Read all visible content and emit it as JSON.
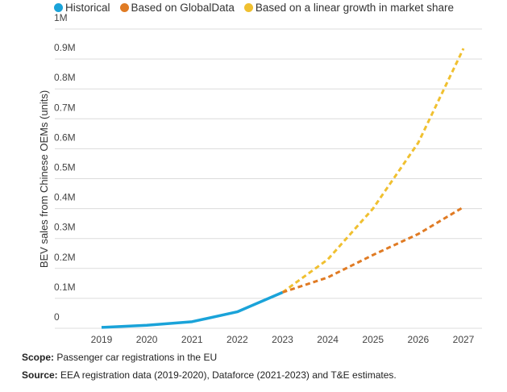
{
  "chart_data": {
    "type": "line",
    "title": "",
    "xlabel": "",
    "ylabel": "BEV sales from Chinese OEMs (units)",
    "ylim": [
      0,
      1000000
    ],
    "yticks": [
      {
        "value": 0,
        "label": "0"
      },
      {
        "value": 100000,
        "label": "0.1M"
      },
      {
        "value": 200000,
        "label": "0.2M"
      },
      {
        "value": 300000,
        "label": "0.3M"
      },
      {
        "value": 400000,
        "label": "0.4M"
      },
      {
        "value": 500000,
        "label": "0.5M"
      },
      {
        "value": 600000,
        "label": "0.6M"
      },
      {
        "value": 700000,
        "label": "0.7M"
      },
      {
        "value": 800000,
        "label": "0.8M"
      },
      {
        "value": 900000,
        "label": "0.9M"
      },
      {
        "value": 1000000,
        "label": "1M"
      }
    ],
    "x": [
      "2019",
      "2020",
      "2021",
      "2022",
      "2023",
      "2024",
      "2025",
      "2026",
      "2027"
    ],
    "grid": true,
    "legend_position": "top-left",
    "series": [
      {
        "name": "Historical",
        "color": "#1aa3d9",
        "dashed": false,
        "x": [
          "2019",
          "2020",
          "2021",
          "2022",
          "2023"
        ],
        "values": [
          3000,
          10000,
          22000,
          55000,
          120000
        ]
      },
      {
        "name": "Based on GlobalData",
        "color": "#e07b24",
        "dashed": true,
        "x": [
          "2023",
          "2024",
          "2025",
          "2026",
          "2027"
        ],
        "values": [
          120000,
          170000,
          245000,
          315000,
          405000
        ]
      },
      {
        "name": "Based on a linear growth in market share",
        "color": "#f0c030",
        "dashed": true,
        "x": [
          "2023",
          "2024",
          "2025",
          "2026",
          "2027"
        ],
        "values": [
          120000,
          230000,
          400000,
          620000,
          935000
        ]
      }
    ]
  },
  "footer": {
    "scope_label": "Scope:",
    "scope_text": " Passenger car registrations in the EU",
    "source_label": "Source:",
    "source_text": " EEA registration data (2019-2020), Dataforce (2021-2023) and T&E estimates."
  }
}
